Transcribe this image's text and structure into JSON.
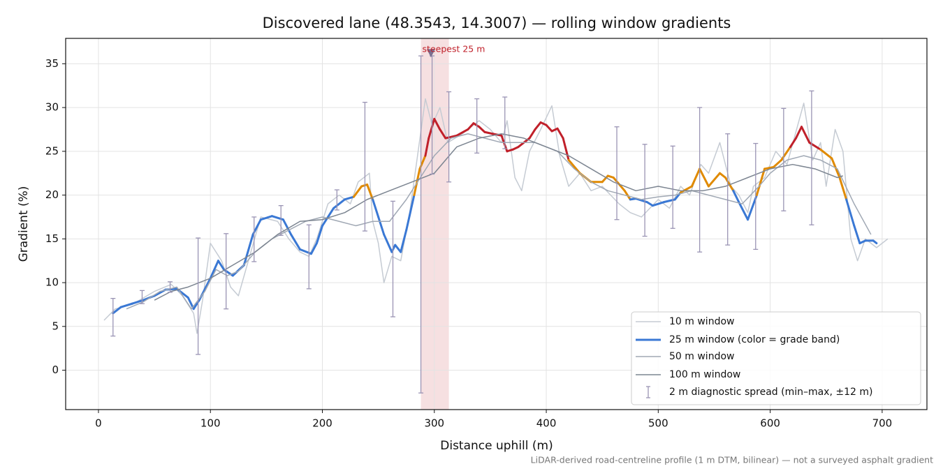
{
  "chart_data": {
    "type": "line",
    "title": "Discovered lane (48.3543, 14.3007) — rolling window gradients",
    "x_label": "Distance uphill (m)",
    "y_label": "Gradient (%)",
    "footnote": "LiDAR-derived road-centreline profile (1 m DTM, bilinear) — not a surveyed asphalt gradient",
    "xlim": [
      -29.3,
      740
    ],
    "ylim": [
      -4.5,
      37.9
    ],
    "xticks": [
      0,
      100,
      200,
      300,
      400,
      500,
      600,
      700
    ],
    "yticks": [
      0,
      5,
      10,
      15,
      20,
      25,
      30,
      35
    ],
    "grid": true,
    "legend": "lower right",
    "band_edges": [
      20,
      25
    ],
    "band_colors": [
      "#3a78d4",
      "#e08a00",
      "#c0202a"
    ],
    "series": [
      {
        "name": "10 m window",
        "color": "#c5cbd3",
        "width": 1.5,
        "x": [
          5,
          15,
          30,
          50,
          65,
          75,
          85,
          88,
          93,
          100,
          110,
          118,
          125,
          135,
          145,
          160,
          170,
          180,
          188,
          195,
          205,
          215,
          225,
          232,
          242,
          245,
          250,
          255,
          262,
          270,
          278,
          285,
          292,
          298,
          305,
          312,
          325,
          340,
          350,
          360,
          365,
          372,
          378,
          385,
          395,
          405,
          412,
          420,
          430,
          440,
          450,
          465,
          475,
          485,
          500,
          510,
          520,
          528,
          538,
          545,
          555,
          565,
          572,
          580,
          585,
          595,
          605,
          615,
          630,
          638,
          645,
          650,
          658,
          665,
          672,
          678,
          685,
          695,
          705
        ],
        "values": [
          5.7,
          7.0,
          7.5,
          9.0,
          9.8,
          8.5,
          6.5,
          4.2,
          8.0,
          14.5,
          12.5,
          9.5,
          8.5,
          13.0,
          17.5,
          17.0,
          15.0,
          13.5,
          13.0,
          15.0,
          19.0,
          20.0,
          19.0,
          21.5,
          22.5,
          17.0,
          14.5,
          10.0,
          13.0,
          12.5,
          18.0,
          24.5,
          31.0,
          28.0,
          30.0,
          26.0,
          27.0,
          28.5,
          27.5,
          26.0,
          28.5,
          22.0,
          20.5,
          25.0,
          27.5,
          30.2,
          24.5,
          21.0,
          22.5,
          20.5,
          21.0,
          19.0,
          18.0,
          17.5,
          19.5,
          18.5,
          21.0,
          20.0,
          23.5,
          22.5,
          26.0,
          21.0,
          20.0,
          18.0,
          21.0,
          22.0,
          25.0,
          23.5,
          30.5,
          24.0,
          26.0,
          21.0,
          27.5,
          25.0,
          15.0,
          12.5,
          15.0,
          14.0,
          15.0
        ]
      },
      {
        "name": "25 m window (color = grade band)",
        "color": "#3a78d4",
        "width": 3,
        "banded": true,
        "x": [
          13,
          20,
          30,
          40,
          50,
          60,
          70,
          80,
          85,
          90,
          100,
          107,
          112,
          120,
          130,
          138,
          145,
          155,
          165,
          172,
          180,
          190,
          195,
          200,
          210,
          220,
          228,
          235,
          240,
          245,
          250,
          255,
          262,
          265,
          270,
          275,
          282,
          287,
          292,
          295,
          300,
          305,
          310,
          320,
          330,
          335,
          340,
          345,
          352,
          360,
          365,
          370,
          375,
          385,
          390,
          395,
          400,
          405,
          410,
          415,
          420,
          430,
          440,
          450,
          455,
          460,
          470,
          475,
          480,
          490,
          495,
          505,
          515,
          520,
          530,
          537,
          545,
          555,
          560,
          567,
          572,
          580,
          588,
          595,
          603,
          610,
          618,
          623,
          628,
          635,
          645,
          655,
          662,
          668,
          675,
          680,
          685,
          692,
          695
        ],
        "values": [
          6.5,
          7.2,
          7.6,
          8.0,
          8.5,
          9.2,
          9.3,
          8.3,
          7.0,
          8.0,
          10.5,
          12.5,
          11.5,
          10.8,
          12.0,
          15.5,
          17.2,
          17.6,
          17.2,
          15.5,
          13.8,
          13.3,
          14.5,
          16.5,
          18.5,
          19.5,
          19.8,
          21.0,
          21.2,
          19.5,
          17.5,
          15.5,
          13.5,
          14.3,
          13.5,
          16.0,
          20.0,
          23.0,
          24.5,
          26.5,
          28.7,
          27.5,
          26.5,
          26.8,
          27.5,
          28.2,
          27.8,
          27.2,
          27.0,
          26.8,
          25.0,
          25.2,
          25.5,
          26.5,
          27.5,
          28.3,
          28.0,
          27.3,
          27.6,
          26.5,
          24.0,
          22.5,
          21.5,
          21.5,
          22.2,
          22.0,
          20.5,
          19.5,
          19.6,
          19.2,
          18.8,
          19.2,
          19.5,
          20.3,
          21.0,
          23.0,
          21.0,
          22.5,
          22.0,
          20.5,
          19.2,
          17.2,
          20.0,
          23.0,
          23.2,
          24.0,
          25.5,
          26.5,
          27.8,
          26.0,
          25.2,
          24.2,
          22.0,
          19.5,
          16.5,
          14.5,
          14.8,
          14.8,
          14.5
        ]
      },
      {
        "name": "50 m window",
        "color": "#a0a8b4",
        "width": 1.5,
        "x": [
          25,
          40,
          55,
          70,
          83,
          95,
          105,
          115,
          125,
          140,
          155,
          170,
          185,
          200,
          215,
          230,
          245,
          260,
          275,
          290,
          300,
          315,
          330,
          345,
          360,
          375,
          390,
          410,
          425,
          440,
          455,
          470,
          485,
          500,
          515,
          530,
          545,
          560,
          575,
          590,
          600,
          615,
          630,
          645,
          660,
          675,
          690
        ],
        "values": [
          7.0,
          7.8,
          9.0,
          9.5,
          7.0,
          9.0,
          11.5,
          10.8,
          11.3,
          13.5,
          15.0,
          16.0,
          17.0,
          17.5,
          17.0,
          16.5,
          17.0,
          17.0,
          19.5,
          22.5,
          24.5,
          26.5,
          27.0,
          26.5,
          26.0,
          26.0,
          26.0,
          25.0,
          23.0,
          21.5,
          20.5,
          20.0,
          19.5,
          19.8,
          20.0,
          20.5,
          20.0,
          19.5,
          19.0,
          21.0,
          22.5,
          24.0,
          24.5,
          24.0,
          23.0,
          19.0,
          15.5
        ]
      },
      {
        "name": "100 m window",
        "color": "#7c8591",
        "width": 1.5,
        "x": [
          50,
          65,
          80,
          100,
          120,
          140,
          160,
          180,
          200,
          220,
          240,
          260,
          280,
          300,
          310,
          320,
          340,
          360,
          380,
          400,
          420,
          440,
          460,
          480,
          500,
          520,
          540,
          560,
          580,
          600,
          620,
          640,
          660,
          665
        ],
        "values": [
          8.0,
          9.0,
          9.5,
          10.5,
          12.0,
          13.5,
          15.5,
          17.0,
          17.2,
          18.0,
          19.5,
          20.5,
          21.5,
          22.5,
          24.0,
          25.5,
          26.5,
          27.0,
          26.5,
          25.5,
          24.5,
          23.0,
          21.5,
          20.5,
          21.0,
          20.5,
          20.5,
          21.0,
          22.0,
          23.0,
          23.5,
          23.0,
          22.0,
          22.2
        ]
      }
    ],
    "errorbars": {
      "name": "2 m diagnostic spread (min–max, ±12 m)",
      "color": "#9a94b4",
      "x": [
        13,
        39,
        64,
        89,
        114,
        139,
        163,
        188,
        213,
        238,
        263,
        288,
        298,
        313,
        338,
        363,
        463,
        488,
        513,
        537,
        562,
        587,
        612,
        637
      ],
      "min": [
        3.9,
        7.6,
        8.9,
        1.8,
        7.0,
        12.4,
        15.4,
        9.3,
        18.3,
        15.9,
        6.1,
        -2.6,
        22.4,
        21.5,
        24.8,
        25.3,
        17.2,
        15.3,
        16.2,
        13.5,
        14.3,
        13.8,
        18.2,
        16.6
      ],
      "max": [
        8.2,
        9.1,
        10.1,
        15.1,
        15.6,
        17.5,
        18.8,
        16.6,
        20.6,
        30.6,
        19.3,
        35.9,
        35.9,
        31.8,
        31.0,
        31.2,
        27.8,
        25.8,
        25.6,
        30.0,
        27.0,
        25.9,
        29.9,
        31.9
      ]
    },
    "highlight": {
      "label": "steepest 25 m",
      "xlim": [
        288,
        313
      ],
      "color": "#c0202a",
      "marker": {
        "x": 297,
        "y": 36.2
      }
    }
  }
}
